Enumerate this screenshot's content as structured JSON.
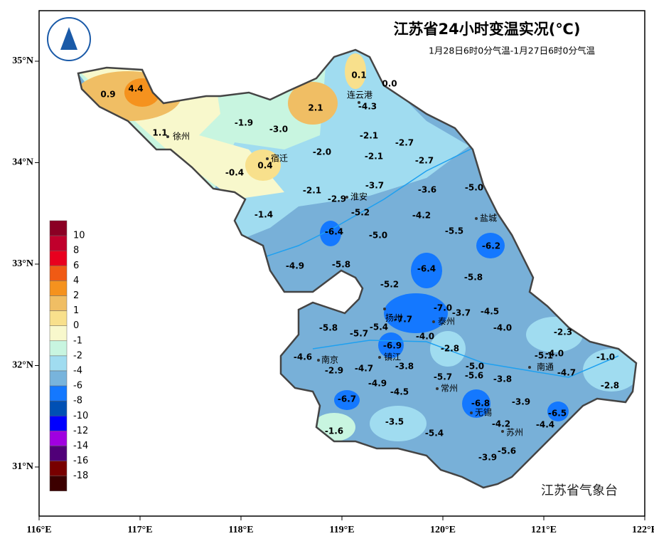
{
  "header": {
    "title": "江苏省24小时变温实况(℃)",
    "subtitle": "1月28日6时0分气温-1月27日6时0分气温"
  },
  "map": {
    "xticks": [
      {
        "value": 116,
        "label": "116°E"
      },
      {
        "value": 117,
        "label": "117°E"
      },
      {
        "value": 118,
        "label": "118°E"
      },
      {
        "value": 119,
        "label": "119°E"
      },
      {
        "value": 120,
        "label": "120°E"
      },
      {
        "value": 121,
        "label": "121°E"
      },
      {
        "value": 122,
        "label": "122°E"
      }
    ],
    "yticks": [
      {
        "value": 31,
        "label": "31°N"
      },
      {
        "value": 32,
        "label": "32°N"
      },
      {
        "value": 33,
        "label": "33°N"
      },
      {
        "value": 34,
        "label": "34°N"
      },
      {
        "value": 35,
        "label": "35°N"
      }
    ],
    "values": [
      "0.9",
      "4.4",
      "1.1",
      "2.1",
      "0.1",
      "0.0",
      "-4.3",
      "-1.9",
      "-3.0",
      "-2.1",
      "-2.7",
      "-2.0",
      "-2.1",
      "-2.7",
      "-0.4",
      "0.4",
      "-2.1",
      "-2.9",
      "-3.7",
      "-3.6",
      "-5.0",
      "-1.4",
      "-5.2",
      "-4.2",
      "-6.4",
      "-5.0",
      "-5.5",
      "-6.2",
      "-4.9",
      "-5.8",
      "-6.4",
      "-5.8",
      "-5.2",
      "-7.0",
      "-3.7",
      "-4.5",
      "-5.8",
      "-5.7",
      "-5.4",
      "-7.7",
      "-4.0",
      "-4.0",
      "-2.3",
      "-6.9",
      "-2.8",
      "-5.1",
      "-4.0",
      "-1.0",
      "-4.6",
      "-2.9",
      "-4.7",
      "-3.8",
      "-5.0",
      "-5.6",
      "-4.7",
      "-2.8",
      "-5.7",
      "-3.8",
      "-4.9",
      "-4.5",
      "-6.7",
      "-6.8",
      "-3.9",
      "-6.5",
      "-3.5",
      "-4.2",
      "-4.4",
      "-1.6",
      "-5.4",
      "-5.6",
      "-3.9"
    ],
    "cities": [
      "连云港",
      "徐州",
      "宿迁",
      "淮安",
      "盐城",
      "扬州",
      "泰州",
      "镇江",
      "南京",
      "常州",
      "无锡",
      "苏州",
      "南通"
    ]
  },
  "legend": {
    "colors": [
      "#8b0024",
      "#c0002c",
      "#e8001e",
      "#f05a14",
      "#f5921e",
      "#f0be64",
      "#f8e08c",
      "#f8f8cc",
      "#c8f5e0",
      "#a0dcf0",
      "#78b4dc",
      "#1478ff",
      "#0050b4",
      "#0000ff",
      "#a000e0",
      "#500078",
      "#780000",
      "#3c0000"
    ],
    "labels": [
      10,
      8,
      6,
      4,
      2,
      1,
      0,
      -1,
      -2,
      -4,
      -6,
      -8,
      -10,
      -12,
      -14,
      -16,
      -18
    ]
  },
  "credit": "江苏省气象台"
}
